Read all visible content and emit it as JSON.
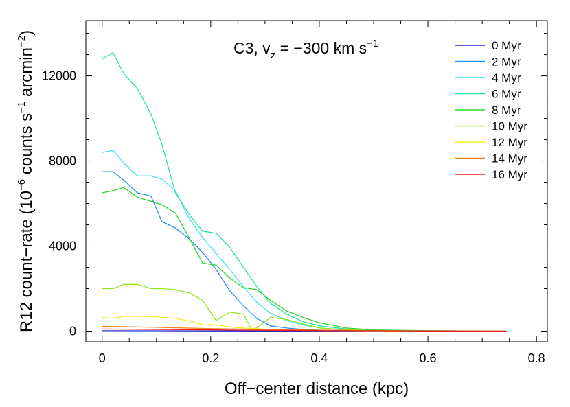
{
  "chart_data": {
    "type": "line",
    "annotation": {
      "main": "C3, v",
      "sub": "z",
      "rest": " = −300 km s",
      "sup": "−1"
    },
    "xlabel": "Off−center distance (kpc)",
    "ylabel": {
      "main": "R12 count−rate (10",
      "sup1": "−6",
      "mid": " counts s",
      "sup2": "−1",
      "mid2": " arcmin",
      "sup3": "−2",
      "end": ")"
    },
    "xlim": [
      -0.03,
      0.82
    ],
    "ylim": [
      -500,
      14600
    ],
    "xticks": [
      0,
      0.2,
      0.4,
      0.6,
      0.8
    ],
    "xtick_labels": [
      "0",
      "0.2",
      "0.4",
      "0.6",
      "0.8"
    ],
    "yticks": [
      0,
      4000,
      8000,
      12000
    ],
    "ytick_labels": [
      "0",
      "4000",
      "8000",
      "12000"
    ],
    "grid": false,
    "legend_position": "top-right",
    "series": [
      {
        "name": "0 Myr",
        "color": "#2a2ad0",
        "x": [
          0,
          0.1,
          0.2,
          0.3,
          0.4,
          0.5,
          0.6,
          0.745
        ],
        "y": [
          20,
          15,
          10,
          8,
          5,
          3,
          2,
          0
        ]
      },
      {
        "name": "2 Myr",
        "color": "#1e90ff",
        "x": [
          0,
          0.02,
          0.04,
          0.065,
          0.09,
          0.11,
          0.135,
          0.16,
          0.185,
          0.21,
          0.235,
          0.26,
          0.285,
          0.31,
          0.34,
          0.37,
          0.4,
          0.45,
          0.5,
          0.6,
          0.745
        ],
        "y": [
          7500,
          7500,
          7100,
          6500,
          6350,
          5150,
          4850,
          4350,
          3700,
          2900,
          1900,
          1200,
          600,
          250,
          150,
          80,
          50,
          30,
          20,
          10,
          0
        ]
      },
      {
        "name": "4 Myr",
        "color": "#40e0f0",
        "x": [
          0,
          0.02,
          0.04,
          0.065,
          0.09,
          0.11,
          0.135,
          0.16,
          0.185,
          0.21,
          0.235,
          0.26,
          0.285,
          0.31,
          0.34,
          0.37,
          0.4,
          0.45,
          0.5,
          0.6,
          0.745
        ],
        "y": [
          8400,
          8500,
          7900,
          7300,
          7300,
          7150,
          6600,
          5300,
          4400,
          3650,
          2900,
          2100,
          1350,
          850,
          500,
          300,
          150,
          60,
          30,
          10,
          0
        ]
      },
      {
        "name": "6 Myr",
        "color": "#20e89a",
        "x": [
          0,
          0.02,
          0.04,
          0.065,
          0.09,
          0.11,
          0.135,
          0.16,
          0.185,
          0.21,
          0.235,
          0.26,
          0.285,
          0.31,
          0.34,
          0.37,
          0.4,
          0.45,
          0.5,
          0.6,
          0.745
        ],
        "y": [
          12800,
          13100,
          12100,
          11400,
          10200,
          8800,
          6500,
          5500,
          4700,
          4600,
          3950,
          3000,
          2100,
          1300,
          800,
          450,
          250,
          100,
          50,
          20,
          0
        ]
      },
      {
        "name": "8 Myr",
        "color": "#2ad82a",
        "x": [
          0,
          0.02,
          0.04,
          0.065,
          0.09,
          0.11,
          0.135,
          0.16,
          0.185,
          0.21,
          0.235,
          0.26,
          0.285,
          0.31,
          0.34,
          0.37,
          0.4,
          0.45,
          0.5,
          0.6,
          0.745
        ],
        "y": [
          6500,
          6600,
          6750,
          6300,
          6100,
          5950,
          5550,
          4400,
          3200,
          3100,
          2500,
          2050,
          1950,
          1450,
          950,
          650,
          400,
          150,
          60,
          20,
          0
        ]
      },
      {
        "name": "10 Myr",
        "color": "#90e818",
        "x": [
          0,
          0.02,
          0.04,
          0.065,
          0.09,
          0.11,
          0.135,
          0.16,
          0.185,
          0.21,
          0.235,
          0.26,
          0.275,
          0.285,
          0.31,
          0.34,
          0.37,
          0.4,
          0.45,
          0.5,
          0.6,
          0.745
        ],
        "y": [
          2000,
          2000,
          2200,
          2200,
          2000,
          2000,
          1950,
          1800,
          1450,
          500,
          900,
          800,
          100,
          150,
          650,
          550,
          350,
          150,
          70,
          30,
          10,
          0
        ]
      },
      {
        "name": "12 Myr",
        "color": "#f0f020",
        "x": [
          0,
          0.02,
          0.04,
          0.065,
          0.09,
          0.11,
          0.135,
          0.16,
          0.185,
          0.21,
          0.235,
          0.26,
          0.285,
          0.31,
          0.34,
          0.37,
          0.4,
          0.45,
          0.5,
          0.6,
          0.745
        ],
        "y": [
          650,
          600,
          700,
          700,
          680,
          650,
          600,
          480,
          300,
          300,
          200,
          150,
          120,
          80,
          60,
          40,
          25,
          15,
          10,
          5,
          0
        ]
      },
      {
        "name": "14 Myr",
        "color": "#f08020",
        "x": [
          0,
          0.1,
          0.2,
          0.3,
          0.4,
          0.5,
          0.6,
          0.745
        ],
        "y": [
          230,
          180,
          120,
          80,
          50,
          30,
          15,
          0
        ]
      },
      {
        "name": "16 Myr",
        "color": "#e02020",
        "x": [
          0,
          0.1,
          0.2,
          0.3,
          0.4,
          0.5,
          0.6,
          0.745
        ],
        "y": [
          100,
          80,
          60,
          40,
          25,
          15,
          8,
          0
        ]
      }
    ]
  }
}
